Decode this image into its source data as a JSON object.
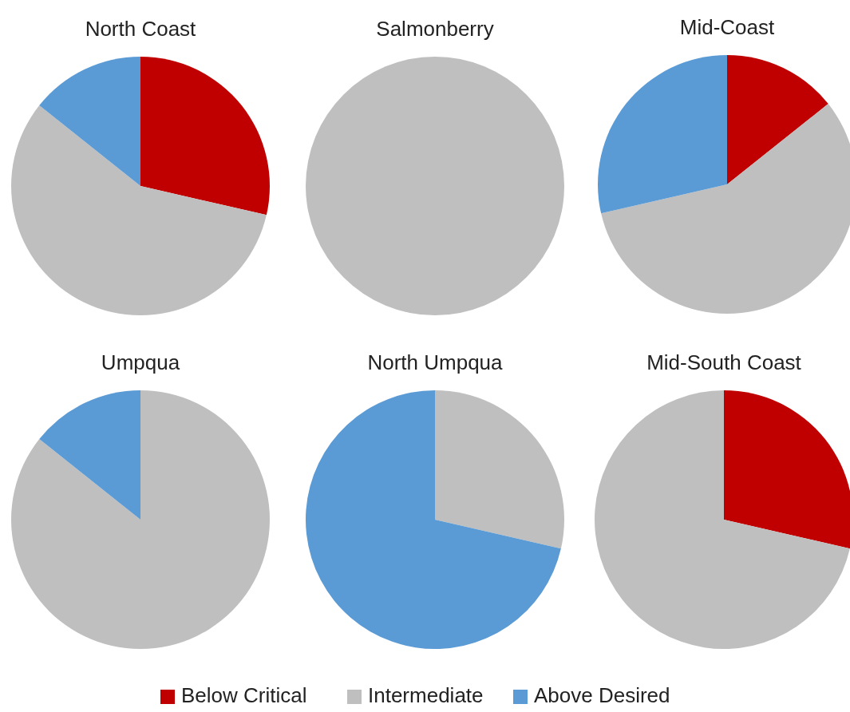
{
  "chart_data": [
    {
      "type": "pie",
      "title": "North Coast",
      "categories": [
        "Below Critical",
        "Intermediate",
        "Above Desired"
      ],
      "values": [
        28.6,
        57.1,
        14.3
      ],
      "colors": [
        "#c00000",
        "#bfbfbf",
        "#5b9bd5"
      ],
      "legend": "bottom"
    },
    {
      "type": "pie",
      "title": "Salmonberry",
      "categories": [
        null,
        null,
        null
      ],
      "values": [
        0,
        100,
        0
      ],
      "colors": [
        "#c00000",
        "#bfbfbf",
        "#5b9bd5"
      ]
    },
    {
      "type": "pie",
      "title": "Mid-Coast",
      "categories": [
        null,
        null,
        null
      ],
      "values": [
        14.3,
        57.1,
        28.6
      ],
      "colors": [
        "#c00000",
        "#bfbfbf",
        "#5b9bd5"
      ]
    },
    {
      "type": "pie",
      "title": "Umpqua",
      "categories": [
        null,
        null,
        null
      ],
      "values": [
        0,
        85.7,
        14.3
      ],
      "colors": [
        "#c00000",
        "#bfbfbf",
        "#5b9bd5"
      ]
    },
    {
      "type": "pie",
      "title": "North Umpqua",
      "categories": [
        null,
        null,
        null
      ],
      "values": [
        0,
        28.6,
        71.4
      ],
      "colors": [
        "#c00000",
        "#bfbfbf",
        "#5b9bd5"
      ]
    },
    {
      "type": "pie",
      "title": "Mid-South Coast",
      "categories": [
        null,
        null,
        null
      ],
      "values": [
        28.6,
        71.4,
        0
      ],
      "colors": [
        "#c00000",
        "#bfbfbf",
        "#5b9bd5"
      ]
    }
  ]
}
